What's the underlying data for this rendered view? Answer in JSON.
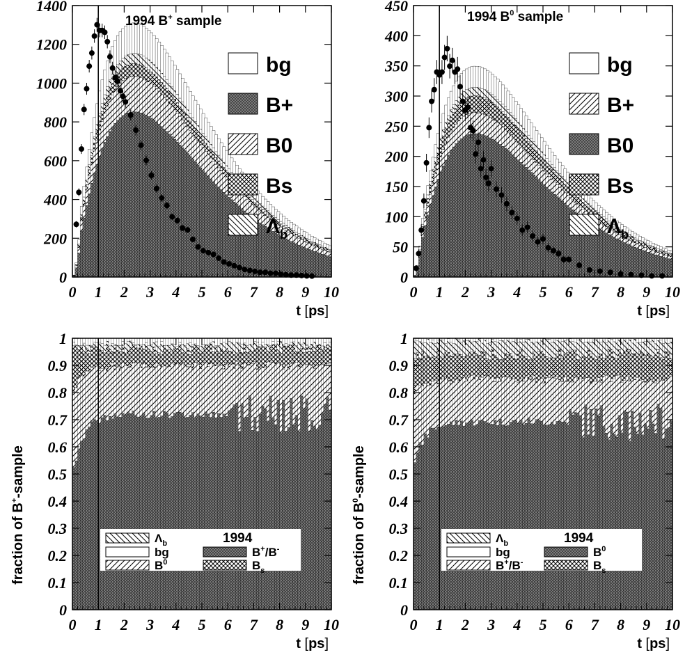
{
  "chart_data": [
    {
      "id": "tl",
      "type": "histogram",
      "title": "1994 B+ sample",
      "title_main": "1994 B",
      "title_sup": "+",
      "title_rest": " sample",
      "xlabel_main": "t",
      "xlabel_unit": "[ps]",
      "ylabel": "",
      "xlim": [
        0,
        10
      ],
      "ylim": [
        0,
        1400
      ],
      "xticks": [
        "0",
        "1",
        "2",
        "3",
        "4",
        "5",
        "6",
        "7",
        "8",
        "9",
        "10"
      ],
      "yticks": [
        "0",
        "200",
        "400",
        "600",
        "800",
        "1000",
        "1200",
        "1400"
      ],
      "ytick_values": [
        0,
        200,
        400,
        600,
        800,
        1000,
        1200,
        1400
      ],
      "vline_x": 1,
      "legend_order": [
        "bg",
        "B+",
        "B0",
        "Bs",
        "Λb"
      ],
      "legend_labels": [
        "bg",
        "B+",
        "B0",
        "Bs",
        "Λ"
      ],
      "legend_subs": [
        "",
        "",
        "",
        "",
        "b"
      ],
      "series": [
        {
          "name": "B+",
          "pattern": "dense"
        },
        {
          "name": "B0",
          "pattern": "hatch"
        },
        {
          "name": "Bs",
          "pattern": "cross"
        },
        {
          "name": "Λb",
          "pattern": "hatch_rev"
        },
        {
          "name": "bg",
          "pattern": "white"
        }
      ],
      "model_curve": {
        "peak_x": 1.0,
        "peak_total": 1350,
        "peak_bplus": 880
      },
      "data_points": {
        "x": [
          0.15,
          0.25,
          0.35,
          0.45,
          0.55,
          0.65,
          0.75,
          0.85,
          0.95,
          1.05,
          1.15,
          1.25,
          1.35,
          1.45,
          1.55,
          1.65,
          1.75,
          1.85,
          1.95,
          2.05,
          2.25,
          2.45,
          2.65,
          2.85,
          3.05,
          3.25,
          3.45,
          3.65,
          3.85,
          4.05,
          4.25,
          4.45,
          4.65,
          4.85,
          5.05,
          5.25,
          5.45,
          5.65,
          5.85,
          6.05,
          6.25,
          6.45,
          6.65,
          6.85,
          7.05,
          7.25,
          7.45,
          7.65,
          7.85,
          8.05,
          8.25,
          8.45,
          8.65,
          8.85,
          9.05,
          9.25
        ],
        "y": [
          280,
          450,
          680,
          890,
          1000,
          1120,
          1190,
          1280,
          1340,
          1310,
          1310,
          1300,
          1250,
          1170,
          1110,
          1060,
          1040,
          990,
          960,
          930,
          860,
          780,
          700,
          620,
          540,
          470,
          420,
          380,
          320,
          300,
          260,
          250,
          200,
          160,
          140,
          130,
          120,
          100,
          80,
          70,
          60,
          50,
          40,
          35,
          30,
          25,
          25,
          20,
          20,
          15,
          12,
          10,
          10,
          8,
          6,
          5
        ]
      }
    },
    {
      "id": "tr",
      "type": "histogram",
      "title": "1994 B0 sample",
      "title_main": "1994 B",
      "title_sup": "0",
      "title_rest": " sample",
      "xlabel_main": "t",
      "xlabel_unit": "[ps]",
      "ylabel": "",
      "xlim": [
        0,
        10
      ],
      "ylim": [
        0,
        450
      ],
      "xticks": [
        "0",
        "1",
        "2",
        "3",
        "4",
        "5",
        "6",
        "7",
        "8",
        "9",
        "10"
      ],
      "yticks": [
        "0",
        "50",
        "100",
        "150",
        "200",
        "250",
        "300",
        "350",
        "400",
        "450"
      ],
      "ytick_values": [
        0,
        50,
        100,
        150,
        200,
        250,
        300,
        350,
        400,
        450
      ],
      "vline_x": 1,
      "legend_order": [
        "bg",
        "B+",
        "B0",
        "Bs",
        "Λb"
      ],
      "legend_labels": [
        "bg",
        "B+",
        "B0",
        "Bs",
        "Λ"
      ],
      "legend_subs": [
        "",
        "",
        "",
        "",
        "b"
      ],
      "series": [
        {
          "name": "B0",
          "pattern": "dense"
        },
        {
          "name": "B+",
          "pattern": "hatch"
        },
        {
          "name": "Bs",
          "pattern": "cross"
        },
        {
          "name": "Λb",
          "pattern": "hatch_rev"
        },
        {
          "name": "bg",
          "pattern": "white"
        }
      ],
      "model_curve": {
        "peak_x": 1.4,
        "peak_total": 360,
        "peak_bplus": 245
      },
      "data_points": {
        "x": [
          0.1,
          0.2,
          0.3,
          0.4,
          0.5,
          0.6,
          0.7,
          0.8,
          0.9,
          1.0,
          1.1,
          1.2,
          1.3,
          1.4,
          1.5,
          1.6,
          1.7,
          1.8,
          1.9,
          2.0,
          2.1,
          2.2,
          2.3,
          2.4,
          2.5,
          2.6,
          2.7,
          2.8,
          2.9,
          3.0,
          3.2,
          3.4,
          3.6,
          3.8,
          4.0,
          4.2,
          4.4,
          4.6,
          4.8,
          5.0,
          5.2,
          5.4,
          5.6,
          5.8,
          6.0,
          6.4,
          6.8,
          7.2,
          7.6,
          8.0,
          8.4,
          8.8,
          9.2,
          9.6
        ],
        "y": [
          15,
          40,
          80,
          130,
          195,
          255,
          300,
          320,
          350,
          345,
          350,
          375,
          390,
          360,
          370,
          350,
          355,
          325,
          300,
          285,
          290,
          255,
          250,
          210,
          230,
          185,
          200,
          170,
          160,
          185,
          150,
          140,
          125,
          110,
          100,
          80,
          85,
          70,
          60,
          65,
          50,
          45,
          40,
          30,
          30,
          20,
          12,
          10,
          8,
          5,
          4,
          3,
          2,
          2
        ]
      }
    },
    {
      "id": "bl",
      "type": "histogram",
      "title": "",
      "xlabel_main": "t",
      "xlabel_unit": "[ps]",
      "ylabel": "fraction of B+-sample",
      "ylabel_main": "fraction of B",
      "ylabel_sup": "+",
      "ylabel_rest": "-sample",
      "xlim": [
        0,
        10
      ],
      "ylim": [
        0,
        1
      ],
      "xticks": [
        "0",
        "1",
        "2",
        "3",
        "4",
        "5",
        "6",
        "7",
        "8",
        "9",
        "10"
      ],
      "yticks": [
        "0",
        "0.1",
        "0.2",
        "0.3",
        "0.4",
        "0.5",
        "0.6",
        "0.7",
        "0.8",
        "0.9",
        "1"
      ],
      "ytick_values": [
        0,
        0.1,
        0.2,
        0.3,
        0.4,
        0.5,
        0.6,
        0.7,
        0.8,
        0.9,
        1.0
      ],
      "vline_x": 1,
      "legend_year": "1994",
      "legend_items": [
        {
          "label": "Λ",
          "sub": "b",
          "sup": "",
          "pattern": "hatch_rev"
        },
        {
          "label": "bg",
          "sub": "",
          "sup": "",
          "pattern": "white"
        },
        {
          "label": "B",
          "sub": "",
          "sup": "0",
          "pattern": "hatch"
        },
        {
          "label": "B",
          "sub": "",
          "sup": "+",
          "rest": "/B",
          "sup2": "-",
          "pattern": "dense"
        },
        {
          "label": "B",
          "sub": "s",
          "sup": "",
          "pattern": "cross"
        }
      ],
      "fractions": {
        "main_name": "B+",
        "main_start": 0.5,
        "main_plateau": 0.72,
        "second_name": "B0",
        "second_top_start": 0.8,
        "second_top_plateau": 0.9,
        "bs_top_plateau": 0.96,
        "lb_top_plateau": 0.98
      }
    },
    {
      "id": "br",
      "type": "histogram",
      "title": "",
      "xlabel_main": "t",
      "xlabel_unit": "[ps]",
      "ylabel": "fraction of B0-sample",
      "ylabel_main": "fraction of B",
      "ylabel_sup": "0",
      "ylabel_rest": "-sample",
      "xlim": [
        0,
        10
      ],
      "ylim": [
        0,
        1
      ],
      "xticks": [
        "0",
        "1",
        "2",
        "3",
        "4",
        "5",
        "6",
        "7",
        "8",
        "9",
        "10"
      ],
      "yticks": [
        "0",
        "0.1",
        "0.2",
        "0.3",
        "0.4",
        "0.5",
        "0.6",
        "0.7",
        "0.8",
        "0.9",
        "1"
      ],
      "ytick_values": [
        0,
        0.1,
        0.2,
        0.3,
        0.4,
        0.5,
        0.6,
        0.7,
        0.8,
        0.9,
        1.0
      ],
      "vline_x": 1,
      "legend_year": "1994",
      "legend_items": [
        {
          "label": "Λ",
          "sub": "b",
          "sup": "",
          "pattern": "hatch_rev"
        },
        {
          "label": "bg",
          "sub": "",
          "sup": "",
          "pattern": "white"
        },
        {
          "label": "B",
          "sub": "",
          "sup": "+",
          "rest": "/B",
          "sup2": "-",
          "pattern": "hatch"
        },
        {
          "label": "B",
          "sub": "",
          "sup": "0",
          "pattern": "dense"
        },
        {
          "label": "B",
          "sub": "s",
          "sup": "",
          "pattern": "cross"
        }
      ],
      "fractions": {
        "main_name": "B0",
        "main_start": 0.54,
        "main_plateau": 0.69,
        "second_name": "B+",
        "second_top_start": 0.8,
        "second_top_plateau": 0.85,
        "bs_top_plateau": 0.94,
        "lb_top_plateau": 0.99
      }
    }
  ]
}
